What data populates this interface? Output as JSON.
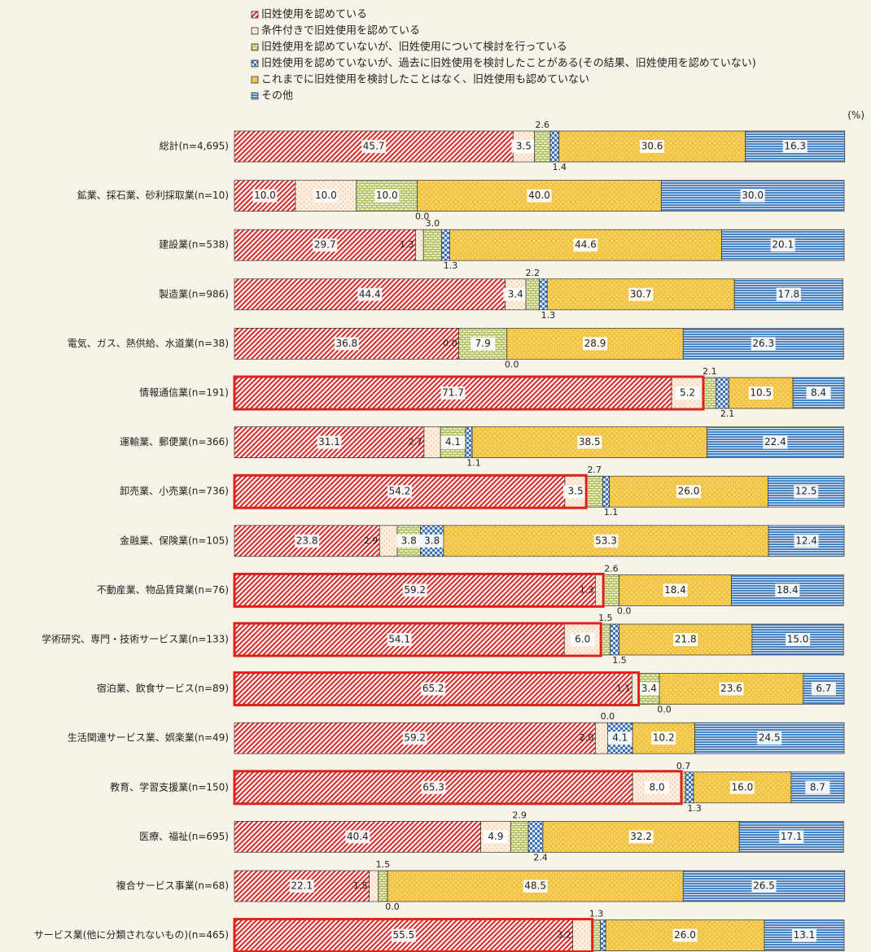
{
  "chart_data": {
    "type": "stacked-bar-horizontal",
    "unit": "(%)",
    "categories": [
      "総計(n=4,695)",
      "鉱業、採石業、砂利採取業(n=10)",
      "建設業(n=538)",
      "製造業(n=986)",
      "電気、ガス、熱供給、水道業(n=38)",
      "情報通信業(n=191)",
      "運輸業、郵便業(n=366)",
      "卸売業、小売業(n=736)",
      "金融業、保険業(n=105)",
      "不動産業、物品賃貸業(n=76)",
      "学術研究、専門・技術サービス業(n=133)",
      "宿泊業、飲食サービス(n=89)",
      "生活関連サービス業、娯楽業(n=49)",
      "教育、学習支援業(n=150)",
      "医療、福祉(n=695)",
      "複合サービス事業(n=68)",
      "サービス業(他に分類されないもの)(n=465)"
    ],
    "highlight": [
      false,
      false,
      false,
      false,
      false,
      true,
      false,
      true,
      false,
      true,
      true,
      true,
      false,
      true,
      false,
      false,
      true
    ],
    "xlim": [
      0,
      100
    ],
    "series": [
      {
        "name": "旧姓使用を認めている",
        "color": "#d9302c",
        "values": [
          45.7,
          10.0,
          29.7,
          44.4,
          36.8,
          71.7,
          31.1,
          54.2,
          23.8,
          59.2,
          54.1,
          65.2,
          59.2,
          65.3,
          40.4,
          22.1,
          55.5
        ],
        "value_labels": [
          "45.7",
          "10.0",
          "29.7",
          "44.4",
          "36.8",
          "71.7",
          "31.1",
          "54.2",
          "23.8",
          "59.2",
          "54.1",
          "65.2",
          "59.2",
          "65.3",
          "40.4",
          "22.1",
          "55.5"
        ]
      },
      {
        "name": "条件付きで旧姓使用を認めている",
        "color": "#f3c9a3",
        "values": [
          3.5,
          10.0,
          1.3,
          3.4,
          0.0,
          5.2,
          2.7,
          3.5,
          2.9,
          1.3,
          6.0,
          1.1,
          2.0,
          8.0,
          4.9,
          1.5,
          3.2
        ],
        "value_labels": [
          "3.5",
          "10.0",
          "1.3",
          "3.4",
          "0.0",
          "5.2",
          "2.7",
          "3.5",
          "2.9",
          "1.3",
          "6.0",
          "1.1",
          "2.0",
          "8.0",
          "4.9",
          "1.5",
          "3.2"
        ]
      },
      {
        "name": "旧姓使用を認めていないが、旧姓使用について検討を行っている",
        "color": "#a9b85a",
        "values": [
          2.6,
          10.0,
          3.0,
          2.2,
          7.9,
          2.1,
          4.1,
          2.7,
          3.8,
          2.6,
          1.5,
          3.4,
          0.0,
          0.7,
          2.9,
          1.5,
          1.3
        ],
        "value_labels": [
          "2.6",
          "10.0",
          "3.0",
          "2.2",
          "7.9",
          "2.1",
          "4.1",
          "2.7",
          "3.8",
          "2.6",
          "1.5",
          "3.4",
          "0.0",
          "0.7",
          "2.9",
          "1.5",
          "1.3"
        ]
      },
      {
        "name": "旧姓使用を認めていないが、過去に旧姓使用を検討したことがある(その結果、旧姓使用を認めていない)",
        "color": "#3f6fb8",
        "values": [
          1.4,
          0.0,
          1.3,
          1.3,
          0.0,
          2.1,
          1.1,
          1.1,
          3.8,
          0.0,
          1.5,
          0.0,
          4.1,
          1.3,
          2.4,
          0.0,
          0.9
        ],
        "value_labels": [
          "1.4",
          "0.0",
          "1.3",
          "1.3",
          "0.0",
          "2.1",
          "1.1",
          "1.1",
          "3.8",
          "0.0",
          "1.5",
          "0.0",
          "4.1",
          "1.3",
          "2.4",
          "0.0",
          "0.9"
        ]
      },
      {
        "name": "これまでに旧姓使用を検討したことはなく、旧姓使用も認めていない",
        "color": "#f2c443",
        "values": [
          30.6,
          40.0,
          44.6,
          30.7,
          28.9,
          10.5,
          38.5,
          26.0,
          53.3,
          18.4,
          21.8,
          23.6,
          10.2,
          16.0,
          32.2,
          48.5,
          26.0
        ],
        "value_labels": [
          "30.6",
          "40.0",
          "44.6",
          "30.7",
          "28.9",
          "10.5",
          "38.5",
          "26.0",
          "53.3",
          "18.4",
          "21.8",
          "23.6",
          "10.2",
          "16.0",
          "32.2",
          "48.5",
          "26.0"
        ]
      },
      {
        "name": "その他",
        "color": "#4a84c0",
        "values": [
          16.3,
          30.0,
          20.1,
          17.8,
          26.3,
          8.4,
          22.4,
          12.5,
          12.4,
          18.4,
          15.0,
          6.7,
          24.5,
          8.7,
          17.1,
          26.5,
          13.1
        ],
        "value_labels": [
          "16.3",
          "30.0",
          "20.1",
          "17.8",
          "26.3",
          "8.4",
          "22.4",
          "12.5",
          "12.4",
          "18.4",
          "15.0",
          "6.7",
          "24.5",
          "8.7",
          "17.1",
          "26.5",
          "13.1"
        ]
      }
    ]
  }
}
